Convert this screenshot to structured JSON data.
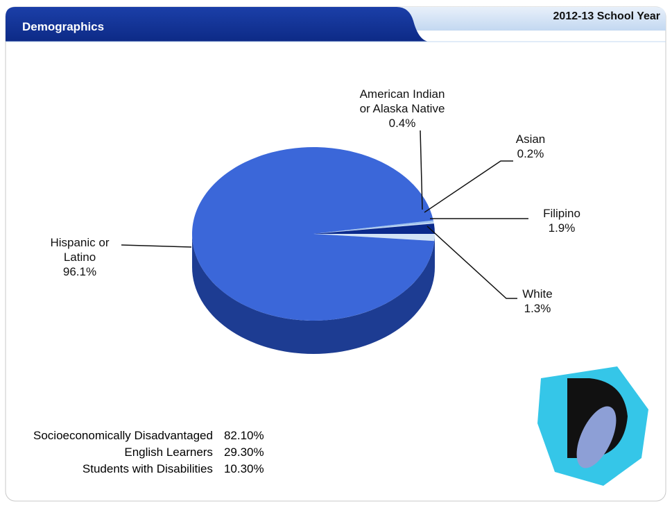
{
  "header": {
    "title": "Demographics",
    "tab": "2012-13 School Year"
  },
  "chart_data": {
    "type": "pie",
    "categories": [
      "American Indian or Alaska Native",
      "Asian",
      "Filipino",
      "White",
      "Hispanic or Latino"
    ],
    "values": [
      0.4,
      0.2,
      1.9,
      1.3,
      96.1
    ],
    "value_labels": [
      "0.4%",
      "0.2%",
      "1.9%",
      "1.3%",
      "96.1%"
    ],
    "colors": [
      "#9fc2ee",
      "#c9dcf4",
      "#0b2a8c",
      "#d2e3f6",
      "#3b67d9"
    ]
  },
  "stats": {
    "rows": [
      [
        "Socioeconomically Disadvantaged",
        "82.10%"
      ],
      [
        "English Learners",
        "29.30%"
      ],
      [
        "Students with Disabilities",
        "10.30%"
      ]
    ]
  }
}
